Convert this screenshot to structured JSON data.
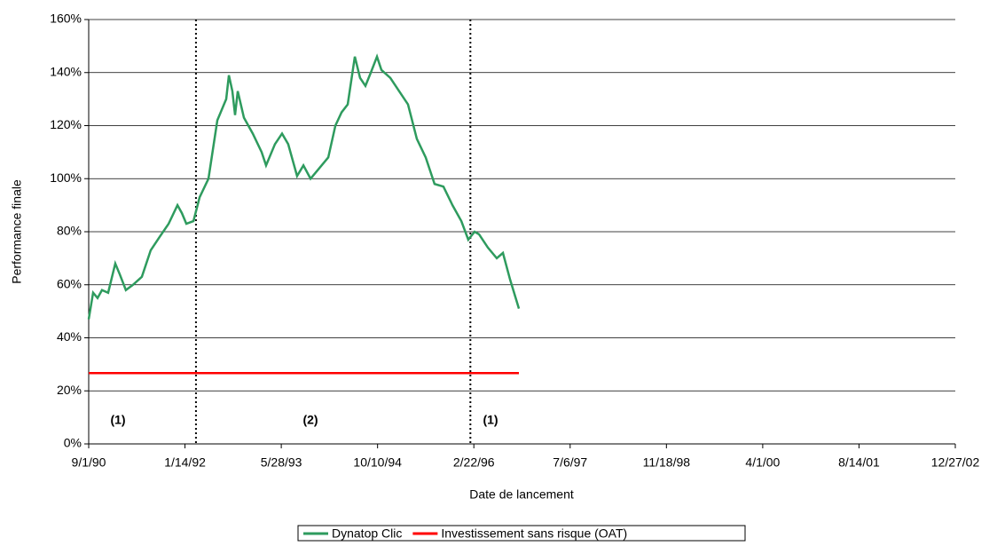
{
  "chart_data": {
    "type": "line",
    "xlabel": "Date de lancement",
    "ylabel": "Performance finale",
    "x": [
      "9/1/90",
      "9/24/90",
      "10/17/90",
      "11/9/90",
      "12/11/90",
      "1/17/91",
      "2/9/91",
      "3/13/91",
      "4/19/91",
      "6/4/91",
      "7/20/91",
      "9/4/91",
      "10/21/91",
      "12/6/91",
      "12/29/91",
      "1/21/92",
      "2/27/92",
      "3/30/92",
      "5/15/92",
      "6/30/92",
      "8/15/92",
      "8/29/92",
      "9/16/92",
      "9/30/92",
      "10/14/92",
      "11/15/92",
      "12/31/92",
      "2/15/93",
      "3/10/93",
      "4/25/93",
      "6/1/93",
      "7/3/93",
      "8/18/93",
      "9/20/93",
      "10/27/93",
      "12/12/93",
      "1/27/94",
      "3/5/94",
      "4/6/94",
      "5/8/94",
      "6/14/94",
      "7/11/94",
      "8/8/94",
      "9/5/94",
      "10/7/94",
      "10/30/94",
      "12/15/94",
      "1/30/95",
      "3/17/95",
      "5/2/95",
      "6/17/95",
      "8/2/95",
      "9/17/95",
      "11/3/95",
      "12/19/95",
      "1/24/96",
      "2/26/96",
      "3/20/96",
      "5/5/96",
      "6/20/96",
      "7/22/96",
      "8/28/96",
      "10/13/96"
    ],
    "series": [
      {
        "name": "Dynatop Clic",
        "color": "#2e9b5e",
        "values": [
          47,
          57,
          55,
          58,
          57,
          68,
          64,
          58,
          60,
          63,
          73,
          78,
          83,
          90,
          87,
          83,
          84,
          93,
          100,
          122,
          130,
          139,
          133,
          124,
          133,
          123,
          117,
          110,
          105,
          113,
          117,
          113,
          101,
          105,
          100,
          104,
          108,
          120,
          125,
          128,
          146,
          138,
          135,
          140,
          146,
          141,
          138,
          133,
          128,
          115,
          108,
          98,
          97,
          90,
          84,
          77,
          80,
          79,
          74,
          70,
          72,
          62,
          51
        ]
      },
      {
        "name": "Investissement sans risque (OAT)",
        "color": "#ff0000",
        "values": [
          26.7,
          26.7,
          26.7,
          26.7,
          26.7,
          26.7,
          26.7,
          26.7,
          26.7,
          26.7,
          26.7,
          26.7,
          26.7,
          26.7,
          26.7,
          26.7,
          26.7,
          26.7,
          26.7,
          26.7,
          26.7,
          26.7,
          26.7,
          26.7,
          26.7,
          26.7,
          26.7,
          26.7,
          26.7,
          26.7,
          26.7,
          26.7,
          26.7,
          26.7,
          26.7,
          26.7,
          26.7,
          26.7,
          26.7,
          26.7,
          26.7,
          26.7,
          26.7,
          26.7,
          26.7,
          26.7,
          26.7,
          26.7,
          26.7,
          26.7,
          26.7,
          26.7,
          26.7,
          26.7,
          26.7,
          26.7,
          26.7,
          26.7,
          26.7,
          26.7,
          26.7,
          26.7,
          26.7
        ]
      }
    ],
    "xlim": [
      "9/1/90",
      "12/27/02"
    ],
    "xticks": [
      "9/1/90",
      "1/14/92",
      "5/28/93",
      "10/10/94",
      "2/22/96",
      "7/6/97",
      "11/18/98",
      "4/1/00",
      "8/14/01",
      "12/27/02"
    ],
    "ylim": [
      0,
      160
    ],
    "yticks": [
      {
        "value": 0,
        "label": "0%"
      },
      {
        "value": 20,
        "label": "20%"
      },
      {
        "value": 40,
        "label": "40%"
      },
      {
        "value": 60,
        "label": "60%"
      },
      {
        "value": 80,
        "label": "80%"
      },
      {
        "value": 100,
        "label": "100%"
      },
      {
        "value": 120,
        "label": "120%"
      },
      {
        "value": 140,
        "label": "140%"
      },
      {
        "value": 160,
        "label": "160%"
      }
    ],
    "grid": true,
    "reference_lines": [
      "3/11/92",
      "2/4/96"
    ],
    "annotations": [
      "(1)",
      "(2)",
      "(1)"
    ],
    "legend": "bottom"
  }
}
